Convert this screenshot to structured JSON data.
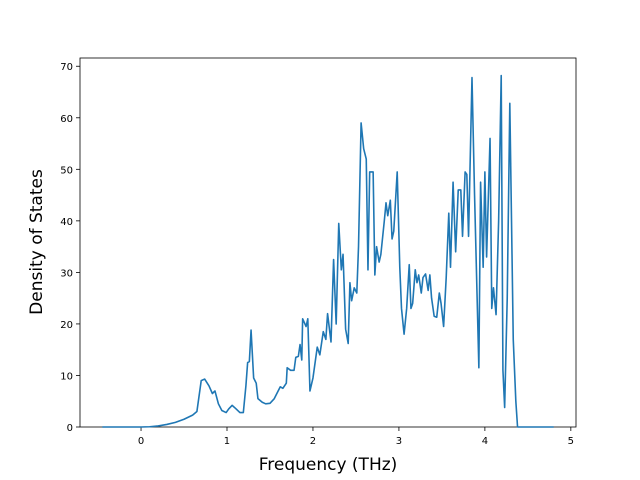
{
  "chart_data": {
    "type": "line",
    "x_label": "Frequency (THz)",
    "y_label": "Density of States",
    "xlim": [
      -0.71,
      5.06
    ],
    "ylim": [
      0,
      71.6
    ],
    "xticks": [
      0,
      1,
      2,
      3,
      4,
      5
    ],
    "yticks": [
      0,
      10,
      20,
      30,
      40,
      50,
      60,
      70
    ],
    "grid": false,
    "series": [
      {
        "color": "#1f77b4",
        "x": [
          -0.45,
          0,
          0.1,
          0.2,
          0.3,
          0.4,
          0.5,
          0.6,
          0.65,
          0.7,
          0.74,
          0.79,
          0.83,
          0.86,
          0.9,
          0.94,
          0.99,
          1.02,
          1.06,
          1.1,
          1.15,
          1.19,
          1.22,
          1.24,
          1.26,
          1.28,
          1.31,
          1.34,
          1.36,
          1.41,
          1.45,
          1.5,
          1.55,
          1.58,
          1.62,
          1.65,
          1.69,
          1.7,
          1.74,
          1.78,
          1.8,
          1.83,
          1.85,
          1.87,
          1.88,
          1.92,
          1.94,
          1.965,
          2.0,
          2.05,
          2.08,
          2.12,
          2.15,
          2.17,
          2.21,
          2.24,
          2.27,
          2.3,
          2.33,
          2.35,
          2.38,
          2.41,
          2.43,
          2.45,
          2.48,
          2.51,
          2.53,
          2.56,
          2.59,
          2.62,
          2.64,
          2.66,
          2.7,
          2.72,
          2.74,
          2.77,
          2.79,
          2.83,
          2.85,
          2.87,
          2.9,
          2.92,
          2.94,
          2.98,
          3.01,
          3.03,
          3.06,
          3.09,
          3.12,
          3.14,
          3.16,
          3.19,
          3.21,
          3.23,
          3.26,
          3.28,
          3.31,
          3.34,
          3.36,
          3.38,
          3.41,
          3.44,
          3.47,
          3.49,
          3.52,
          3.55,
          3.58,
          3.6,
          3.63,
          3.66,
          3.69,
          3.72,
          3.74,
          3.77,
          3.79,
          3.81,
          3.85,
          3.88,
          3.93,
          3.95,
          3.98,
          4.0,
          4.02,
          4.06,
          4.08,
          4.1,
          4.13,
          4.16,
          4.19,
          4.21,
          4.23,
          4.26,
          4.29,
          4.33,
          4.36,
          4.38,
          4.8
        ],
        "values": [
          0,
          0,
          0.05,
          0.2,
          0.5,
          0.9,
          1.5,
          2.3,
          3,
          9,
          9.3,
          8,
          6.5,
          7,
          4.5,
          3.2,
          2.8,
          3.5,
          4.2,
          3.6,
          2.8,
          2.8,
          8,
          12.5,
          12.7,
          18.8,
          9.5,
          8.5,
          5.5,
          4.8,
          4.5,
          4.6,
          5.5,
          6.5,
          7.8,
          7.5,
          8.5,
          11.5,
          11,
          11,
          13.5,
          13.7,
          16,
          13,
          21,
          19.5,
          21,
          7,
          9.5,
          15.5,
          14,
          18.5,
          17,
          22,
          16.5,
          32.5,
          20,
          39.5,
          30.5,
          33.5,
          19,
          16.2,
          28,
          24.5,
          27,
          26,
          35,
          59,
          54,
          52,
          30.5,
          49.5,
          49.5,
          29.5,
          35,
          32,
          33.5,
          40,
          43.5,
          41,
          44,
          36.5,
          38,
          49.5,
          31,
          23,
          18,
          23,
          31.5,
          23,
          24,
          30.5,
          28,
          29.5,
          26,
          29,
          29.7,
          26.5,
          29.5,
          25,
          21.5,
          21.3,
          26,
          24,
          19.5,
          29,
          41.5,
          31,
          47.5,
          34,
          46,
          46,
          37,
          49.5,
          49,
          37,
          67.8,
          45,
          11.5,
          47.5,
          31,
          49.5,
          33,
          56,
          23,
          27,
          21.8,
          40,
          68.2,
          11,
          3.8,
          25,
          62.8,
          17,
          5,
          0,
          0
        ]
      }
    ]
  }
}
